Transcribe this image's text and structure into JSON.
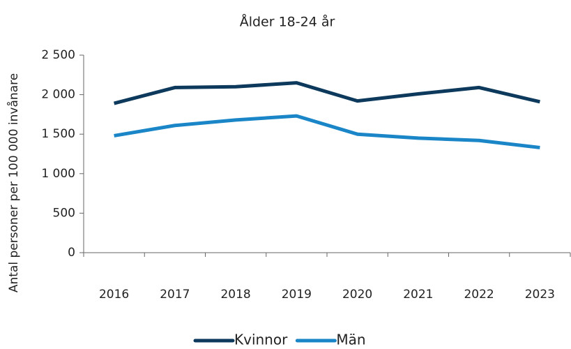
{
  "chart_data": {
    "type": "line",
    "title": "Ålder 18-24 år",
    "y_label": "Antal personer per 100 000 invånare",
    "categories": [
      "2016",
      "2017",
      "2018",
      "2019",
      "2020",
      "2021",
      "2022",
      "2023"
    ],
    "series": [
      {
        "name": "Kvinnor",
        "color": "#0d3a5c",
        "values": [
          1890,
          2090,
          2100,
          2150,
          1920,
          2010,
          2090,
          1910
        ]
      },
      {
        "name": "Män",
        "color": "#1a86c7",
        "values": [
          1480,
          1610,
          1680,
          1730,
          1500,
          1450,
          1420,
          1330
        ]
      }
    ],
    "ylim": [
      0,
      2500
    ],
    "yticks": [
      0,
      500,
      {
        "value": 1000,
        "label": "1 000"
      },
      {
        "value": 1500,
        "label": "1 500"
      },
      {
        "value": 2000,
        "label": "2 000"
      },
      {
        "value": 2500,
        "label": "2 500"
      }
    ],
    "grid": false,
    "legend": "bottom"
  }
}
